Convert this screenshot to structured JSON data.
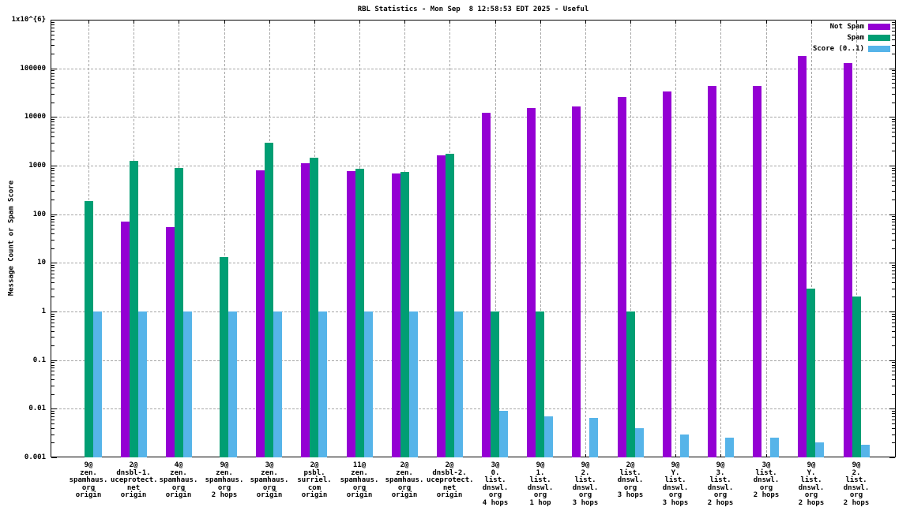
{
  "chart_data": {
    "type": "bar",
    "title": "RBL Statistics - Mon Sep  8 12:58:53 EDT 2025 - Useful",
    "ylabel": "Message Count or Spam Score",
    "y_scale": "log",
    "ylim": [
      0.001,
      1000000
    ],
    "y_tick_labels": [
      "0.001",
      "0.01",
      "0.1",
      "1",
      "10",
      "100",
      "1000",
      "10000",
      "100000",
      "1x10^{6}"
    ],
    "grid": true,
    "legend_position": "top-right",
    "categories": [
      [
        "9@",
        "zen.",
        "spamhaus.",
        "org",
        "origin"
      ],
      [
        "2@",
        "dnsbl-1.",
        "uceprotect.",
        "net",
        "origin"
      ],
      [
        "4@",
        "zen.",
        "spamhaus.",
        "org",
        "origin"
      ],
      [
        "9@",
        "zen.",
        "spamhaus.",
        "org",
        "2 hops"
      ],
      [
        "3@",
        "zen.",
        "spamhaus.",
        "org",
        "origin"
      ],
      [
        "2@",
        "psbl.",
        "surriel.",
        "com",
        "origin"
      ],
      [
        "11@",
        "zen.",
        "spamhaus.",
        "org",
        "origin"
      ],
      [
        "2@",
        "zen.",
        "spamhaus.",
        "org",
        "origin"
      ],
      [
        "2@",
        "dnsbl-2.",
        "uceprotect.",
        "net",
        "origin"
      ],
      [
        "3@",
        "0.",
        "list.",
        "dnswl.",
        "org",
        "4 hops"
      ],
      [
        "9@",
        "1.",
        "list.",
        "dnswl.",
        "org",
        "1 hop"
      ],
      [
        "9@",
        "2.",
        "list.",
        "dnswl.",
        "org",
        "3 hops"
      ],
      [
        "2@",
        "list.",
        "dnswl.",
        "org",
        "3 hops"
      ],
      [
        "9@",
        "Y.",
        "list.",
        "dnswl.",
        "org",
        "3 hops"
      ],
      [
        "9@",
        "3.",
        "list.",
        "dnswl.",
        "org",
        "2 hops"
      ],
      [
        "3@",
        "list.",
        "dnswl.",
        "org",
        "2 hops"
      ],
      [
        "9@",
        "Y.",
        "list.",
        "dnswl.",
        "org",
        "2 hops"
      ],
      [
        "9@",
        "2.",
        "list.",
        "dnswl.",
        "org",
        "2 hops"
      ]
    ],
    "series": [
      {
        "name": "Not Spam",
        "color": "#9400d3",
        "values": [
          null,
          70,
          55,
          null,
          800,
          1100,
          770,
          680,
          1650,
          12000,
          15000,
          16500,
          26000,
          34000,
          43000,
          43000,
          180000,
          130000
        ]
      },
      {
        "name": "Spam",
        "color": "#009e73",
        "values": [
          185,
          1250,
          900,
          13,
          2900,
          1450,
          860,
          730,
          1750,
          1,
          1,
          null,
          1,
          null,
          null,
          null,
          3,
          2
        ]
      },
      {
        "name": "Score (0..1)",
        "color": "#56b4e9",
        "values": [
          1,
          1,
          1,
          1,
          1,
          1,
          1,
          1,
          1,
          0.009,
          0.007,
          0.0065,
          0.004,
          0.003,
          0.0025,
          0.0025,
          0.002,
          0.0018
        ]
      }
    ]
  }
}
